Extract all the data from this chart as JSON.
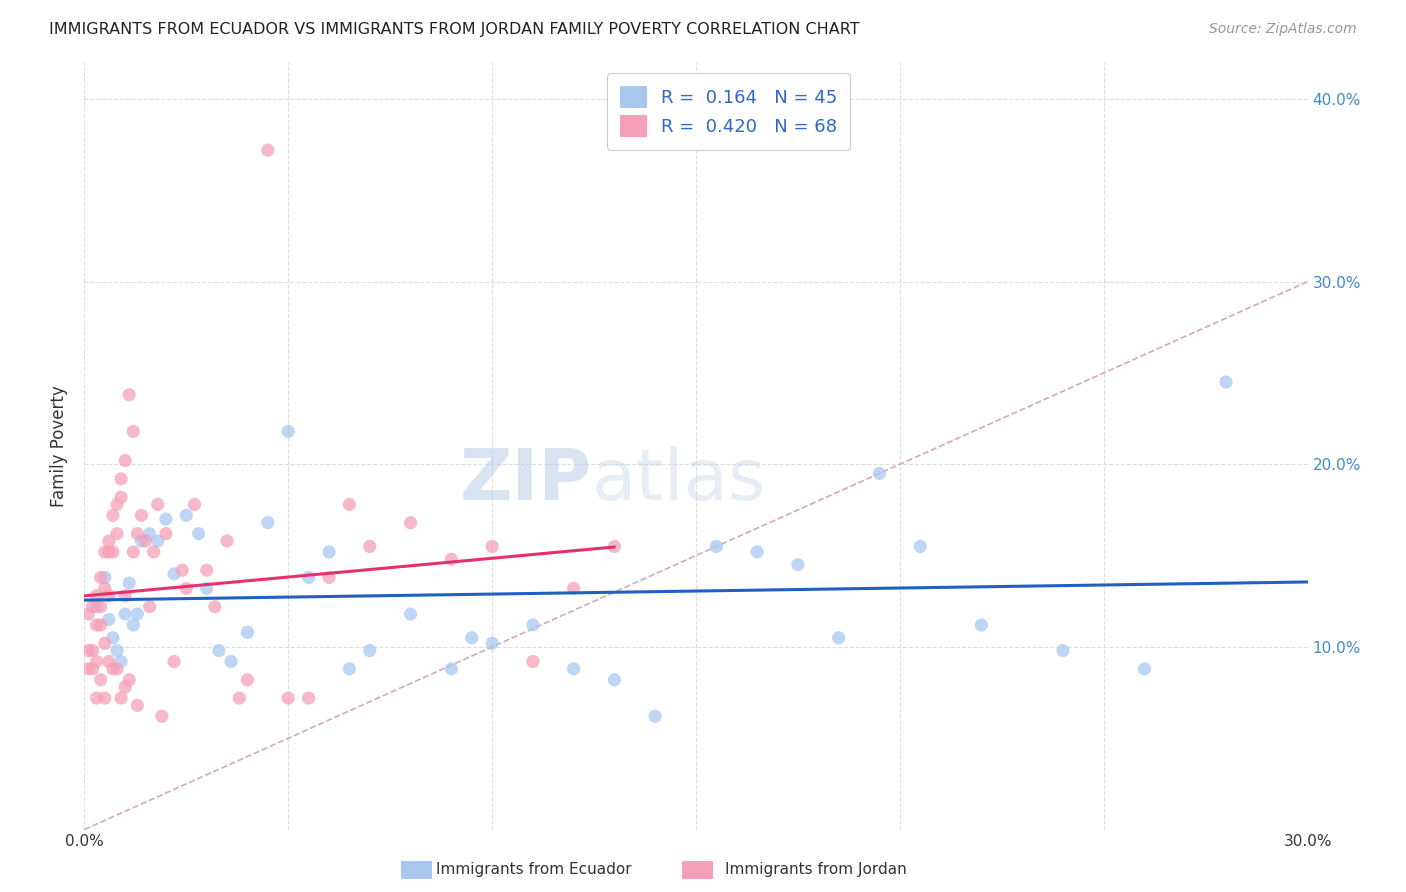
{
  "title": "IMMIGRANTS FROM ECUADOR VS IMMIGRANTS FROM JORDAN FAMILY POVERTY CORRELATION CHART",
  "source": "Source: ZipAtlas.com",
  "ylabel": "Family Poverty",
  "xlim": [
    0,
    0.3
  ],
  "ylim": [
    0,
    0.42
  ],
  "xticks": [
    0.0,
    0.05,
    0.1,
    0.15,
    0.2,
    0.25,
    0.3
  ],
  "yticks": [
    0.0,
    0.1,
    0.2,
    0.3,
    0.4
  ],
  "xtick_labels": [
    "0.0%",
    "",
    "",
    "",
    "",
    "",
    "30.0%"
  ],
  "ytick_labels_right": [
    "",
    "10.0%",
    "20.0%",
    "30.0%",
    "40.0%"
  ],
  "ecuador_R": 0.164,
  "ecuador_N": 45,
  "jordan_R": 0.42,
  "jordan_N": 68,
  "ecuador_color": "#a8c8f0",
  "jordan_color": "#f5a0b8",
  "ecuador_line_color": "#2060c0",
  "jordan_line_color": "#e83070",
  "diagonal_color": "#d0a0b0",
  "background_color": "#ffffff",
  "legend_label_ecuador": "Immigrants from Ecuador",
  "legend_label_jordan": "Immigrants from Jordan",
  "ecuador_x": [
    0.003,
    0.005,
    0.006,
    0.007,
    0.008,
    0.009,
    0.01,
    0.011,
    0.012,
    0.013,
    0.014,
    0.016,
    0.018,
    0.02,
    0.022,
    0.025,
    0.028,
    0.03,
    0.033,
    0.036,
    0.04,
    0.045,
    0.05,
    0.055,
    0.06,
    0.065,
    0.07,
    0.08,
    0.09,
    0.095,
    0.1,
    0.11,
    0.12,
    0.13,
    0.14,
    0.155,
    0.165,
    0.175,
    0.185,
    0.195,
    0.205,
    0.22,
    0.24,
    0.26,
    0.28
  ],
  "ecuador_y": [
    0.122,
    0.138,
    0.115,
    0.105,
    0.098,
    0.092,
    0.118,
    0.135,
    0.112,
    0.118,
    0.158,
    0.162,
    0.158,
    0.17,
    0.14,
    0.172,
    0.162,
    0.132,
    0.098,
    0.092,
    0.108,
    0.168,
    0.218,
    0.138,
    0.152,
    0.088,
    0.098,
    0.118,
    0.088,
    0.105,
    0.102,
    0.112,
    0.088,
    0.082,
    0.062,
    0.155,
    0.152,
    0.145,
    0.105,
    0.195,
    0.155,
    0.112,
    0.098,
    0.088,
    0.245
  ],
  "jordan_x": [
    0.001,
    0.001,
    0.001,
    0.002,
    0.002,
    0.002,
    0.003,
    0.003,
    0.003,
    0.003,
    0.004,
    0.004,
    0.004,
    0.004,
    0.005,
    0.005,
    0.005,
    0.005,
    0.006,
    0.006,
    0.006,
    0.006,
    0.007,
    0.007,
    0.007,
    0.008,
    0.008,
    0.008,
    0.009,
    0.009,
    0.009,
    0.01,
    0.01,
    0.01,
    0.011,
    0.011,
    0.012,
    0.012,
    0.013,
    0.013,
    0.014,
    0.015,
    0.016,
    0.017,
    0.018,
    0.019,
    0.02,
    0.022,
    0.024,
    0.025,
    0.027,
    0.03,
    0.032,
    0.035,
    0.038,
    0.04,
    0.045,
    0.05,
    0.055,
    0.06,
    0.065,
    0.07,
    0.08,
    0.09,
    0.1,
    0.11,
    0.12,
    0.13
  ],
  "jordan_y": [
    0.118,
    0.098,
    0.088,
    0.122,
    0.098,
    0.088,
    0.128,
    0.112,
    0.092,
    0.072,
    0.138,
    0.122,
    0.112,
    0.082,
    0.152,
    0.132,
    0.102,
    0.072,
    0.158,
    0.152,
    0.128,
    0.092,
    0.172,
    0.152,
    0.088,
    0.178,
    0.162,
    0.088,
    0.192,
    0.182,
    0.072,
    0.202,
    0.128,
    0.078,
    0.238,
    0.082,
    0.218,
    0.152,
    0.162,
    0.068,
    0.172,
    0.158,
    0.122,
    0.152,
    0.178,
    0.062,
    0.162,
    0.092,
    0.142,
    0.132,
    0.178,
    0.142,
    0.122,
    0.158,
    0.072,
    0.082,
    0.372,
    0.072,
    0.072,
    0.138,
    0.178,
    0.155,
    0.168,
    0.148,
    0.155,
    0.092,
    0.132,
    0.155
  ]
}
